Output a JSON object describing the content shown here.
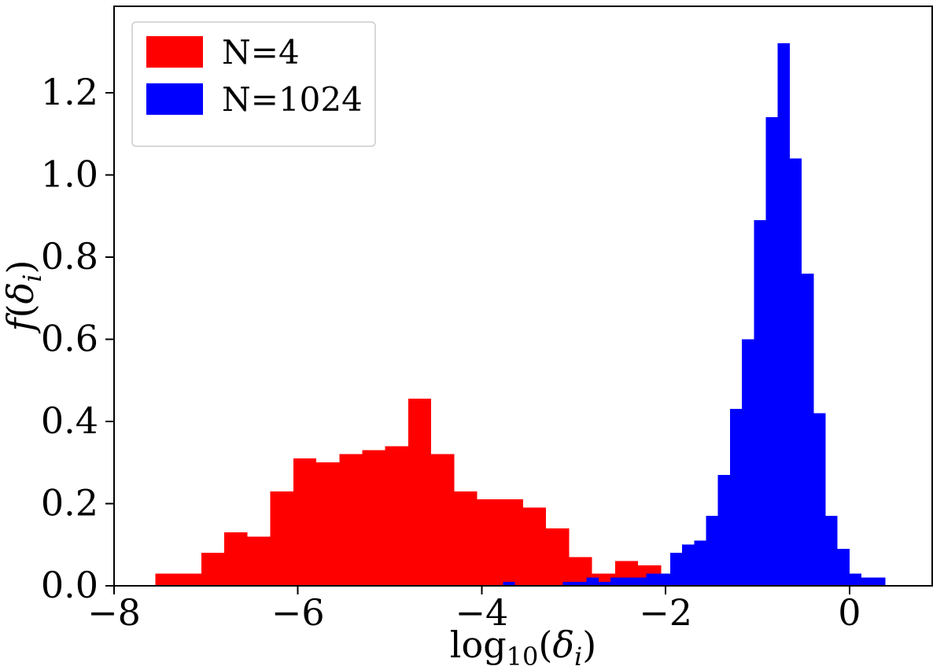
{
  "figure": {
    "background": "#ffffff"
  },
  "labels": {
    "xlabel": {
      "log": "log",
      "sub": "10",
      "open": "(",
      "delta": "δ",
      "isub": "i",
      "close": ")"
    },
    "ylabel": {
      "f": "f",
      "open": "(",
      "delta": "δ",
      "isub": "i",
      "close": ")"
    }
  },
  "chart_data": {
    "type": "bar",
    "subtype": "histogram",
    "title": "",
    "xlabel": "log10(delta_i)",
    "ylabel": "f(delta_i)",
    "xlim": [
      -8,
      0.9
    ],
    "ylim": [
      0,
      1.41
    ],
    "grid": false,
    "x_ticks": [
      -8,
      -6,
      -4,
      -2,
      0
    ],
    "x_tick_labels": [
      "−8",
      "−6",
      "−4",
      "−2",
      "0"
    ],
    "y_ticks": [
      0,
      0.2,
      0.4,
      0.6,
      0.8,
      1.0,
      1.2
    ],
    "y_tick_labels": [
      "0.0",
      "0.2",
      "0.4",
      "0.6",
      "0.8",
      "1.0",
      "1.2"
    ],
    "legend": {
      "position": "upper-left",
      "entries": [
        {
          "label": "N=4",
          "color": "#ff0000"
        },
        {
          "label": "N=1024",
          "color": "#0000ff"
        }
      ]
    },
    "series": [
      {
        "name": "N=4",
        "color": "#ff0000",
        "bin_start": -7.55,
        "bin_width": 0.25,
        "heights": [
          0.03,
          0.03,
          0.08,
          0.13,
          0.12,
          0.23,
          0.31,
          0.3,
          0.32,
          0.33,
          0.34,
          0.455,
          0.32,
          0.23,
          0.21,
          0.21,
          0.19,
          0.14,
          0.07,
          0.03,
          0.06,
          0.05,
          0.02
        ]
      },
      {
        "name": "N=1024",
        "color": "#0000ff",
        "bin_start": -3.77,
        "bin_width": 0.13,
        "heights": [
          0.01,
          0,
          0,
          0,
          0,
          0.01,
          0.01,
          0.02,
          0.01,
          0.02,
          0.02,
          0.02,
          0.03,
          0.03,
          0.08,
          0.1,
          0.11,
          0.17,
          0.27,
          0.43,
          0.6,
          0.89,
          1.14,
          1.32,
          1.04,
          0.76,
          0.42,
          0.17,
          0.09,
          0.03,
          0.02,
          0.02,
          0
        ]
      }
    ]
  }
}
